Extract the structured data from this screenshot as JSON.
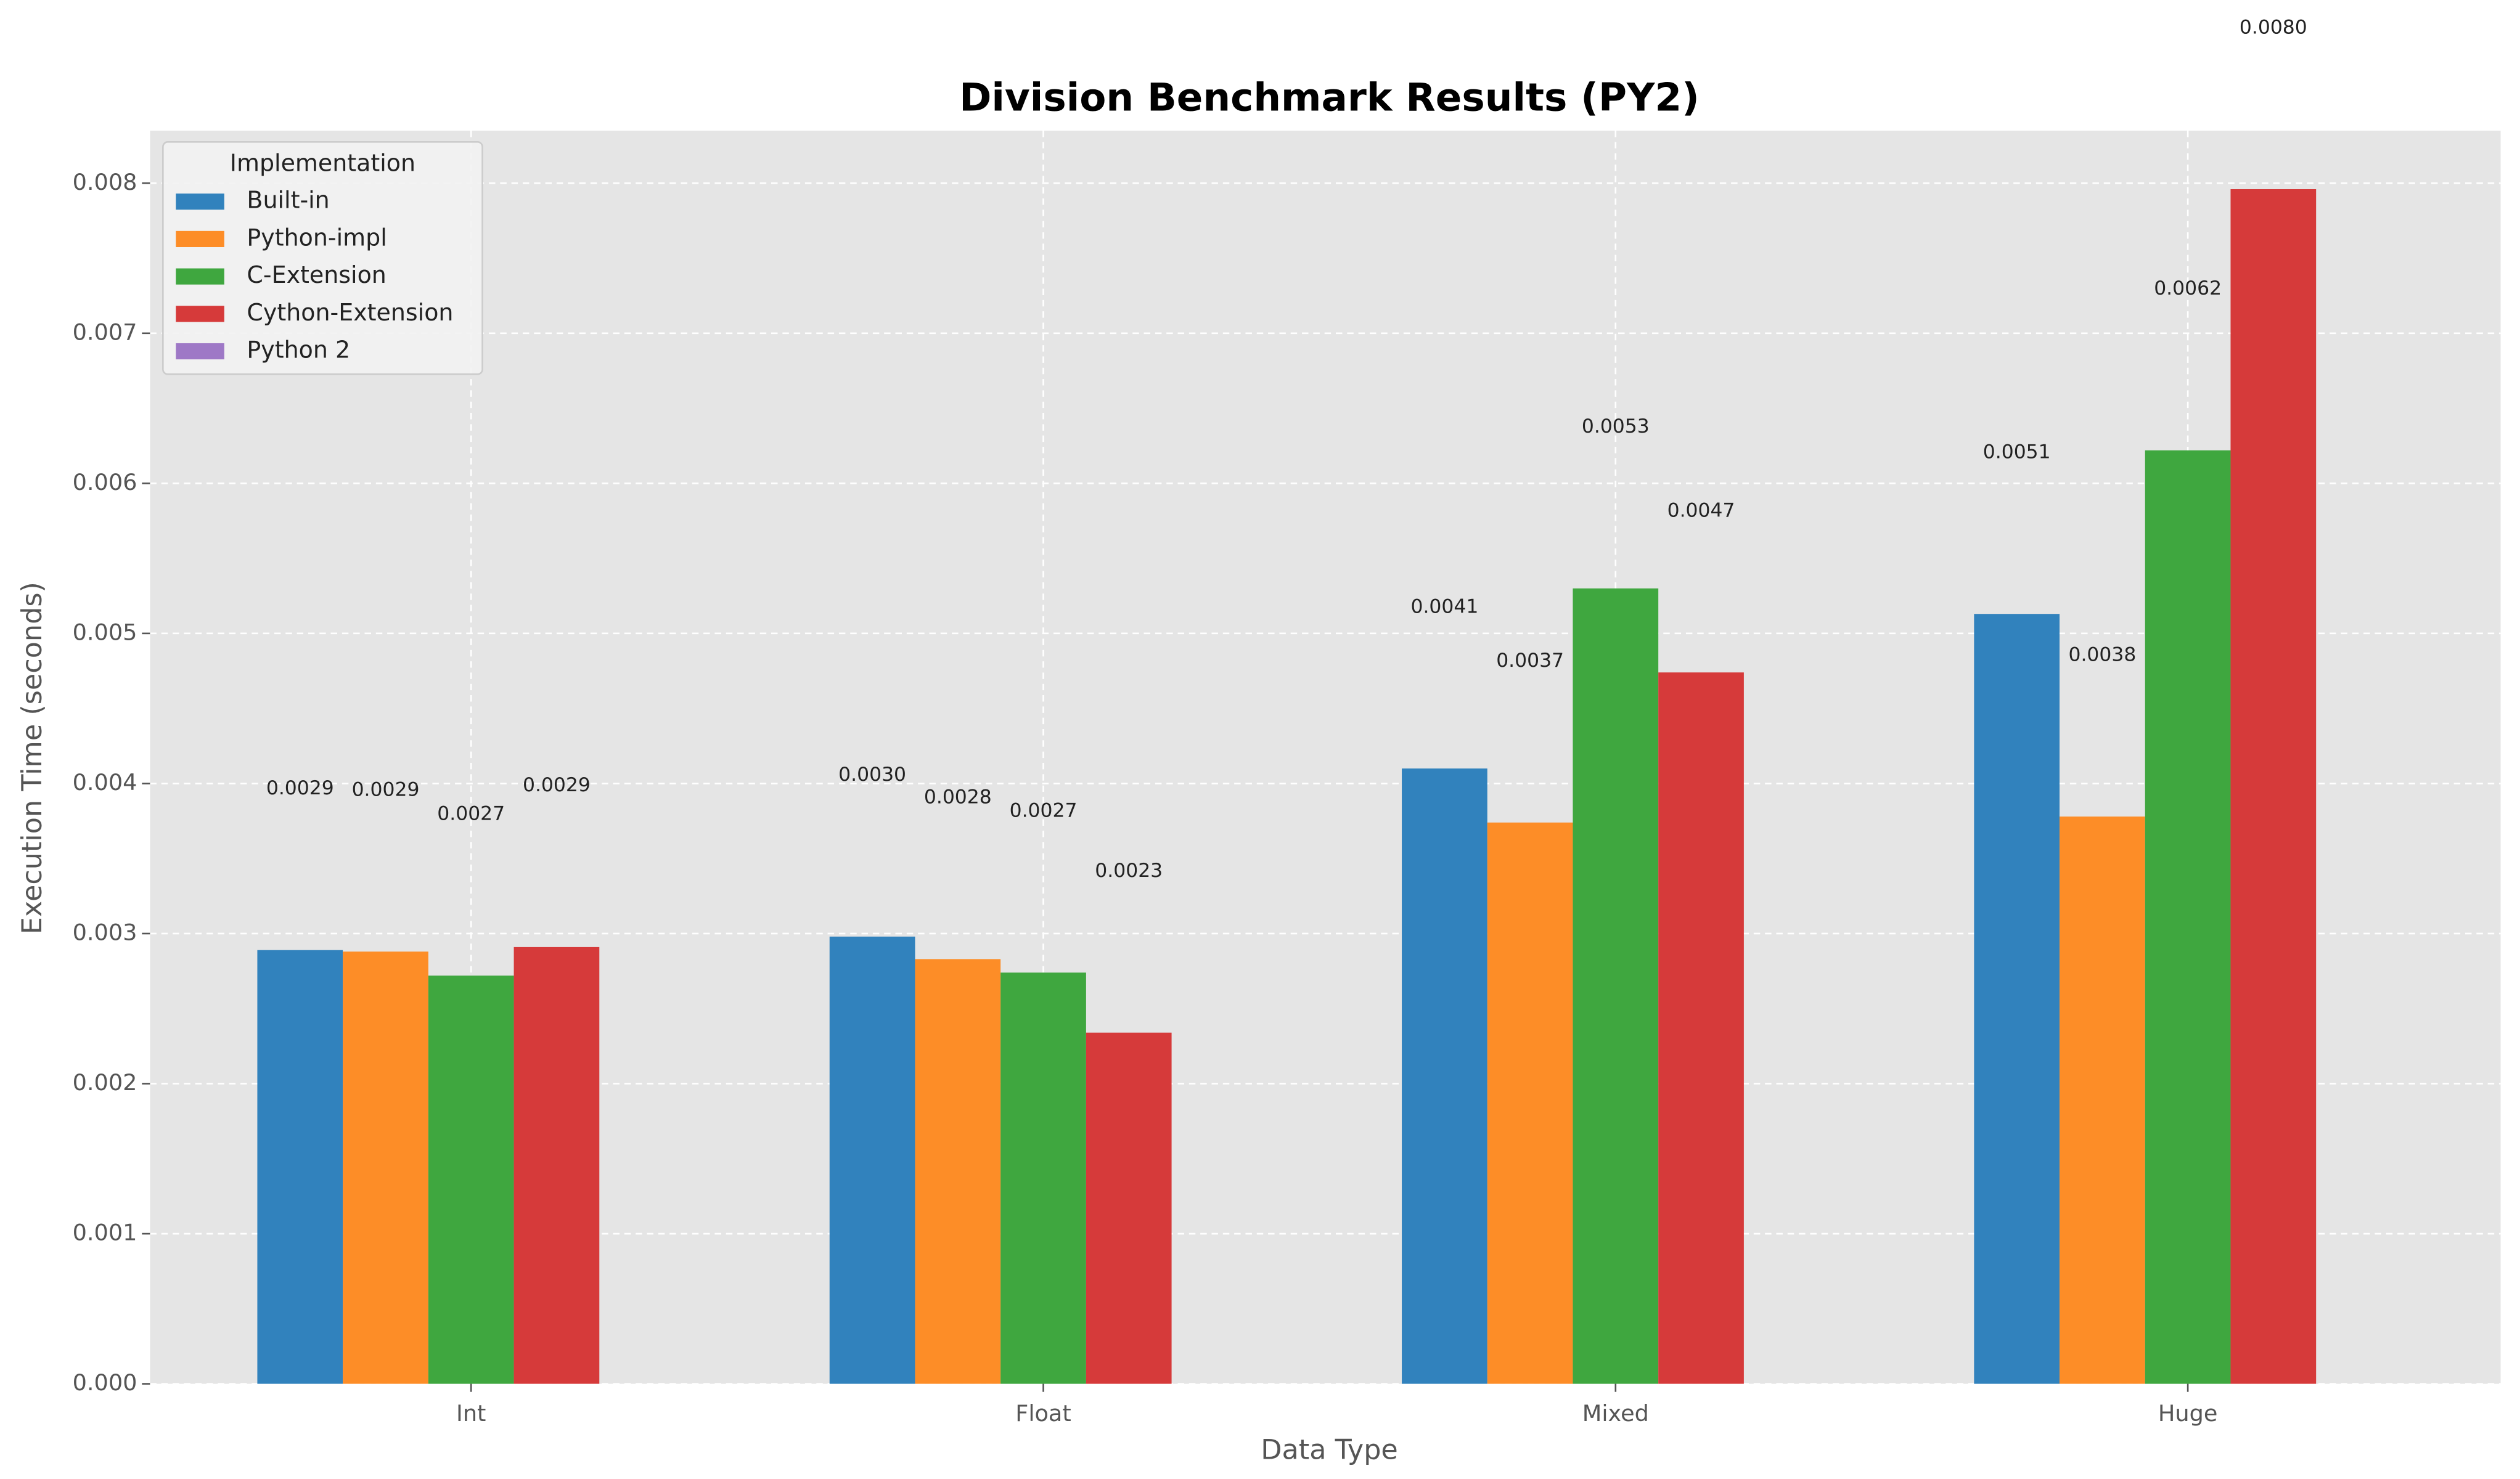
{
  "chart_data": {
    "type": "bar",
    "title": "Division Benchmark Results (PY2)",
    "xlabel": "Data Type",
    "ylabel": "Execution Time (seconds)",
    "legend_title": "Implementation",
    "legend_position": "upper left",
    "grid": true,
    "categories": [
      "Int",
      "Float",
      "Mixed",
      "Huge"
    ],
    "series": [
      {
        "name": "Built-in",
        "color": "#3182bd",
        "values": [
          0.00289,
          0.00298,
          0.0041,
          0.00513
        ],
        "value_labels": [
          "0.0029",
          "0.0030",
          "0.0041",
          "0.0051"
        ]
      },
      {
        "name": "Python-impl",
        "color": "#fd8d27",
        "values": [
          0.00288,
          0.00283,
          0.00374,
          0.00378
        ],
        "value_labels": [
          "0.0029",
          "0.0028",
          "0.0037",
          "0.0038"
        ]
      },
      {
        "name": "C-Extension",
        "color": "#3fa73f",
        "values": [
          0.00272,
          0.00274,
          0.0053,
          0.00622
        ],
        "value_labels": [
          "0.0027",
          "0.0027",
          "0.0053",
          "0.0062"
        ]
      },
      {
        "name": "Cython-Extension",
        "color": "#d63a3a",
        "values": [
          0.00291,
          0.00234,
          0.00474,
          0.00796
        ],
        "value_labels": [
          "0.0029",
          "0.0023",
          "0.0047",
          "0.0080"
        ]
      },
      {
        "name": "Python 2",
        "color": "#9e78c6",
        "values": [
          null,
          null,
          null,
          null
        ]
      }
    ],
    "ylim": [
      0,
      0.00835
    ],
    "yticks": [
      {
        "value": 0,
        "label": "0.000"
      },
      0.001,
      0.002,
      0.003,
      0.004,
      0.005,
      0.006,
      0.007,
      0.008
    ]
  }
}
